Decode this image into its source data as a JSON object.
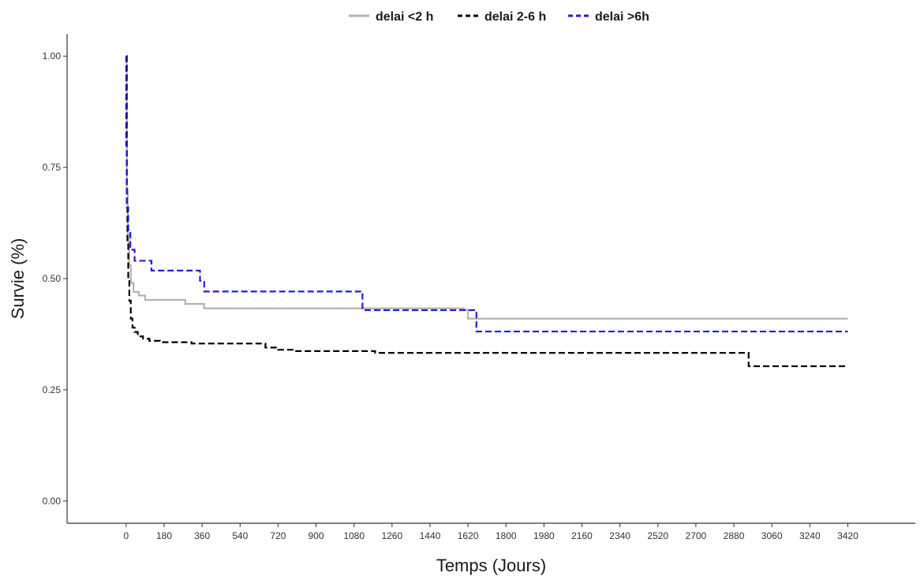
{
  "chart_data": {
    "type": "line",
    "title": "",
    "xlabel": "Temps (Jours)",
    "ylabel": "Survie (%)",
    "xlim": [
      -280,
      3740
    ],
    "ylim": [
      -0.05,
      1.05
    ],
    "x_ticks": [
      0,
      180,
      360,
      540,
      720,
      900,
      1080,
      1260,
      1440,
      1620,
      1800,
      1980,
      2160,
      2340,
      2520,
      2700,
      2880,
      3060,
      3240,
      3420
    ],
    "y_ticks": [
      0.0,
      0.25,
      0.5,
      0.75,
      1.0
    ],
    "y_tick_labels": [
      "0.00",
      "0.25",
      "0.50",
      "0.75",
      "1.00"
    ],
    "grid": false,
    "legend_position": "top",
    "series": [
      {
        "name": "delai <2 h",
        "color": "#b3b3b3",
        "dash": "solid",
        "x": [
          0,
          3,
          8,
          14,
          22,
          35,
          60,
          90,
          280,
          370,
          1600,
          1620,
          3420
        ],
        "y": [
          1.0,
          0.7,
          0.6,
          0.53,
          0.49,
          0.47,
          0.462,
          0.452,
          0.443,
          0.433,
          0.43,
          0.41,
          0.41
        ]
      },
      {
        "name": "delai 2-6 h",
        "color": "#000000",
        "dash": "dashed",
        "x": [
          0,
          1,
          3,
          6,
          10,
          15,
          22,
          30,
          40,
          55,
          80,
          110,
          160,
          310,
          660,
          720,
          800,
          1180,
          2950,
          3420
        ],
        "y": [
          1.0,
          0.8,
          0.66,
          0.58,
          0.5,
          0.45,
          0.41,
          0.39,
          0.38,
          0.37,
          0.365,
          0.36,
          0.357,
          0.354,
          0.345,
          0.34,
          0.337,
          0.333,
          0.303,
          0.303
        ]
      },
      {
        "name": "delai >6h",
        "color": "#1f1fd6",
        "dash": "dashed",
        "x": [
          0,
          4,
          10,
          20,
          40,
          120,
          350,
          370,
          1120,
          1660,
          3420
        ],
        "y": [
          1.0,
          0.66,
          0.61,
          0.565,
          0.54,
          0.518,
          0.495,
          0.471,
          0.429,
          0.381,
          0.381
        ]
      }
    ]
  }
}
